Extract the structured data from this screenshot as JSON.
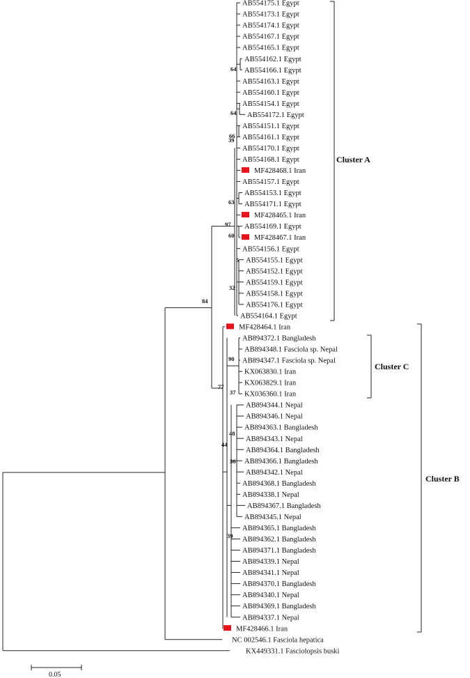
{
  "tree": {
    "marker_color": "#e8141d",
    "leaves": [
      {
        "label": "AB554175.1 Egypt",
        "marked": false
      },
      {
        "label": "AB554173.1 Egypt",
        "marked": false
      },
      {
        "label": "AB554174.1 Egypt",
        "marked": false
      },
      {
        "label": "AB554167.1 Egypt",
        "marked": false
      },
      {
        "label": "AB554165.1 Egypt",
        "marked": false
      },
      {
        "label": "AB554162.1 Egypt",
        "marked": false
      },
      {
        "label": "AB554166.1 Egypt",
        "marked": false
      },
      {
        "label": "AB554163.1 Egypt",
        "marked": false
      },
      {
        "label": "AB554160.1 Egypt",
        "marked": false
      },
      {
        "label": "AB554154.1 Egypt",
        "marked": false
      },
      {
        "label": "AB554172.1 Egypt",
        "marked": false
      },
      {
        "label": "AB554151.1 Egypt",
        "marked": false
      },
      {
        "label": "AB554161.1 Egypt",
        "marked": false
      },
      {
        "label": "AB554170.1 Egypt",
        "marked": false
      },
      {
        "label": "AB554168.1 Egypt",
        "marked": false
      },
      {
        "label": "MF428468.1 Iran",
        "marked": true
      },
      {
        "label": "AB554157.1 Egypt",
        "marked": false
      },
      {
        "label": "AB554153.1 Egypt",
        "marked": false
      },
      {
        "label": "AB554171.1 Egypt",
        "marked": false
      },
      {
        "label": "MF428465.1 Iran",
        "marked": true
      },
      {
        "label": "AB554169.1 Egypt",
        "marked": false
      },
      {
        "label": "MF428467.1 Iran",
        "marked": true
      },
      {
        "label": "AB554156.1 Egypt",
        "marked": false
      },
      {
        "label": "AB554155.1 Egypt",
        "marked": false
      },
      {
        "label": "AB554152.1 Egypt",
        "marked": false
      },
      {
        "label": "AB554159.1 Egypt",
        "marked": false
      },
      {
        "label": "AB554158.1 Egypt",
        "marked": false
      },
      {
        "label": "AB554176.1 Egypt",
        "marked": false
      },
      {
        "label": "AB554164.1 Egypt",
        "marked": false
      },
      {
        "label": "MF428464.1 Iran",
        "marked": true
      },
      {
        "label": "AB894372.1 Bangladesh",
        "marked": false
      },
      {
        "label": "AB894348.1 Fasciola sp. Nepal",
        "marked": false
      },
      {
        "label": "AB894347.1 Fasciola sp. Nepal",
        "marked": false
      },
      {
        "label": "KX063830.1 Iran",
        "marked": false
      },
      {
        "label": "KX063829.1 Iran",
        "marked": false
      },
      {
        "label": "KX036360.1 Iran",
        "marked": false
      },
      {
        "label": "AB894344.1 Nepal",
        "marked": false
      },
      {
        "label": "AB894346.1 Nepal",
        "marked": false
      },
      {
        "label": "AB894363.1 Bangladesh",
        "marked": false
      },
      {
        "label": "AB894343.1 Nepal",
        "marked": false
      },
      {
        "label": "AB894364.1 Bangladesh",
        "marked": false
      },
      {
        "label": "AB894366.1 Bangladesh",
        "marked": false
      },
      {
        "label": "AB894342.1 Nepal",
        "marked": false
      },
      {
        "label": "AB894368.1 Bangladesh",
        "marked": false
      },
      {
        "label": "AB894338.1 Nepal",
        "marked": false
      },
      {
        "label": "AB894367.1 Bangladesh",
        "marked": false
      },
      {
        "label": "AB894345.1 Nepal",
        "marked": false
      },
      {
        "label": "AB894365.1 Bangladesh",
        "marked": false
      },
      {
        "label": "AB894362.1 Bangladesh",
        "marked": false
      },
      {
        "label": "AB894371.1 Bangladesh",
        "marked": false
      },
      {
        "label": "AB894339.1 Nepal",
        "marked": false
      },
      {
        "label": "AB894341.1 Nepal",
        "marked": false
      },
      {
        "label": "AB894370.1 Bangladesh",
        "marked": false
      },
      {
        "label": "AB894340.1 Nepal",
        "marked": false
      },
      {
        "label": "AB894369.1 Bangladesh",
        "marked": false
      },
      {
        "label": "AB894337.1 Nepal",
        "marked": false
      },
      {
        "label": "MF428466.1 Iran",
        "marked": true
      },
      {
        "label": "NC 002546.1 Fasciola hepatica",
        "marked": false
      },
      {
        "label": "KX449331.1 Fasciolopsis buski",
        "marked": false
      }
    ],
    "bootstrap_values": [
      "64",
      "64",
      "66",
      "39",
      "63",
      "97",
      "60",
      "5",
      "32",
      "84",
      "90",
      "77",
      "37",
      "48",
      "44",
      "56",
      "39"
    ],
    "clusters": [
      {
        "name": "Cluster A"
      },
      {
        "name": "Cluster C"
      },
      {
        "name": "Cluster B"
      }
    ],
    "scale_bar": {
      "label": "0.05"
    }
  }
}
